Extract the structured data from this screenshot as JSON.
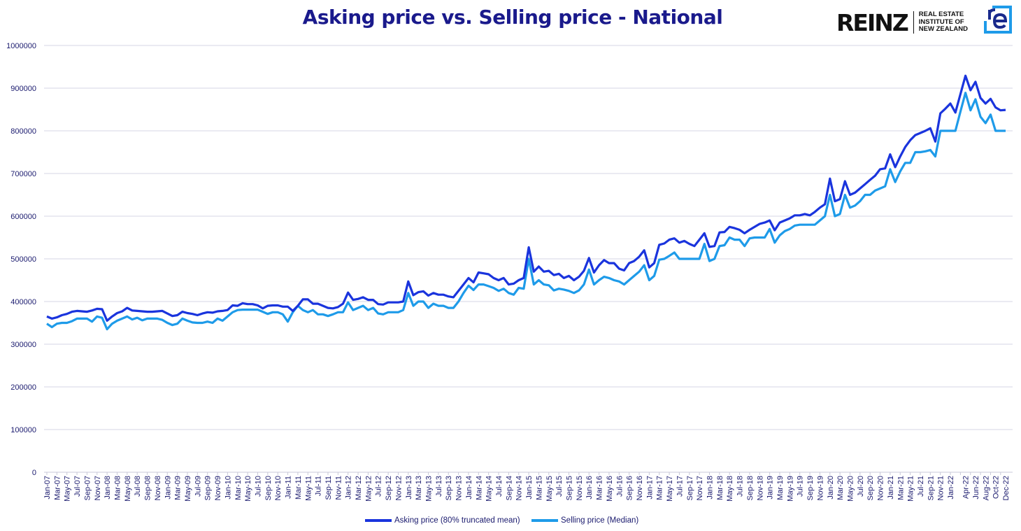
{
  "chart_data": {
    "type": "line",
    "title": "Asking price vs. Selling price - National",
    "xlabel": "",
    "ylabel": "",
    "ylim": [
      0,
      1000000
    ],
    "yticks": [
      0,
      100000,
      200000,
      300000,
      400000,
      500000,
      600000,
      700000,
      800000,
      900000,
      1000000
    ],
    "grid": true,
    "legend_placement": "bottom",
    "categories": [
      "Jan-07",
      "Feb-07",
      "Mar-07",
      "Apr-07",
      "May-07",
      "Jun-07",
      "Jul-07",
      "Aug-07",
      "Sep-07",
      "Oct-07",
      "Nov-07",
      "Dec-07",
      "Jan-08",
      "Feb-08",
      "Mar-08",
      "Apr-08",
      "May-08",
      "Jun-08",
      "Jul-08",
      "Aug-08",
      "Sep-08",
      "Oct-08",
      "Nov-08",
      "Dec-08",
      "Jan-09",
      "Feb-09",
      "Mar-09",
      "Apr-09",
      "May-09",
      "Jun-09",
      "Jul-09",
      "Aug-09",
      "Sep-09",
      "Oct-09",
      "Nov-09",
      "Dec-09",
      "Jan-10",
      "Feb-10",
      "Mar-10",
      "Apr-10",
      "May-10",
      "Jun-10",
      "Jul-10",
      "Aug-10",
      "Sep-10",
      "Oct-10",
      "Nov-10",
      "Dec-10",
      "Jan-11",
      "Feb-11",
      "Mar-11",
      "Apr-11",
      "May-11",
      "Jun-11",
      "Jul-11",
      "Aug-11",
      "Sep-11",
      "Oct-11",
      "Nov-11",
      "Dec-11",
      "Jan-12",
      "Feb-12",
      "Mar-12",
      "Apr-12",
      "May-12",
      "Jun-12",
      "Jul-12",
      "Aug-12",
      "Sep-12",
      "Oct-12",
      "Nov-12",
      "Dec-12",
      "Jan-13",
      "Feb-13",
      "Mar-13",
      "Apr-13",
      "May-13",
      "Jun-13",
      "Jul-13",
      "Aug-13",
      "Sep-13",
      "Oct-13",
      "Nov-13",
      "Dec-13",
      "Jan-14",
      "Feb-14",
      "Mar-14",
      "Apr-14",
      "May-14",
      "Jun-14",
      "Jul-14",
      "Aug-14",
      "Sep-14",
      "Oct-14",
      "Nov-14",
      "Dec-14",
      "Jan-15",
      "Feb-15",
      "Mar-15",
      "Apr-15",
      "May-15",
      "Jun-15",
      "Jul-15",
      "Aug-15",
      "Sep-15",
      "Oct-15",
      "Nov-15",
      "Dec-15",
      "Jan-16",
      "Feb-16",
      "Mar-16",
      "Apr-16",
      "May-16",
      "Jun-16",
      "Jul-16",
      "Aug-16",
      "Sep-16",
      "Oct-16",
      "Nov-16",
      "Dec-16",
      "Jan-17",
      "Feb-17",
      "Mar-17",
      "Apr-17",
      "May-17",
      "Jun-17",
      "Jul-17",
      "Aug-17",
      "Sep-17",
      "Oct-17",
      "Nov-17",
      "Dec-17",
      "Jan-18",
      "Feb-18",
      "Mar-18",
      "Apr-18",
      "May-18",
      "Jun-18",
      "Jul-18",
      "Aug-18",
      "Sep-18",
      "Oct-18",
      "Nov-18",
      "Dec-18",
      "Jan-19",
      "Feb-19",
      "Mar-19",
      "Apr-19",
      "May-19",
      "Jun-19",
      "Jul-19",
      "Aug-19",
      "Sep-19",
      "Oct-19",
      "Nov-19",
      "Dec-19",
      "Jan-20",
      "Feb-20",
      "Mar-20",
      "Apr-20",
      "May-20",
      "Jun-20",
      "Jul-20",
      "Aug-20",
      "Sep-20",
      "Oct-20",
      "Nov-20",
      "Dec-20",
      "Jan-21",
      "Feb-21",
      "Mar-21",
      "Apr-21",
      "May-21",
      "Jun-21",
      "Jul-21",
      "Aug-21",
      "Sep-21",
      "Oct-21",
      "Nov-21",
      "Dec-21",
      "Jan-22",
      "Feb-22",
      "Mar-22",
      "Apr-22",
      "May-22",
      "Jun-22",
      "Jul-22",
      "Aug-22",
      "Sep-22",
      "Oct-22",
      "Nov-22",
      "Dec-22"
    ],
    "tick_labels": [
      "Jan-07",
      "Mar-07",
      "May-07",
      "Jul-07",
      "Sep-07",
      "Nov-07",
      "Jan-08",
      "Mar-08",
      "May-08",
      "Jul-08",
      "Sep-08",
      "Nov-08",
      "Jan-09",
      "Mar-09",
      "May-09",
      "Jul-09",
      "Sep-09",
      "Nov-09",
      "Jan-10",
      "Mar-10",
      "May-10",
      "Jul-10",
      "Sep-10",
      "Nov-10",
      "Jan-11",
      "Mar-11",
      "May-11",
      "Jul-11",
      "Sep-11",
      "Nov-11",
      "Jan-12",
      "Mar-12",
      "May-12",
      "Jul-12",
      "Sep-12",
      "Nov-12",
      "Jan-13",
      "Mar-13",
      "May-13",
      "Jul-13",
      "Sep-13",
      "Nov-13",
      "Jan-14",
      "Mar-14",
      "May-14",
      "Jul-14",
      "Sep-14",
      "Nov-14",
      "Jan-15",
      "Mar-15",
      "May-15",
      "Jul-15",
      "Sep-15",
      "Nov-15",
      "Jan-16",
      "Mar-16",
      "May-16",
      "Jul-16",
      "Sep-16",
      "Nov-16",
      "Jan-17",
      "Mar-17",
      "May-17",
      "Jul-17",
      "Sep-17",
      "Nov-17",
      "Jan-18",
      "Mar-18",
      "May-18",
      "Jul-18",
      "Sep-18",
      "Nov-18",
      "Jan-19",
      "Mar-19",
      "May-19",
      "Jul-19",
      "Sep-19",
      "Nov-19",
      "Jan-20",
      "Mar-20",
      "May-20",
      "Jul-20",
      "Sep-20",
      "Nov-20",
      "Jan-21",
      "Mar-21",
      "May-21",
      "Jul-21",
      "Sep-21",
      "Nov-21",
      "Jan-22",
      "Apr-22",
      "Jun-22",
      "Aug-22",
      "Oct-22",
      "Dec-22"
    ],
    "series": [
      {
        "name": "Asking price (80% truncated mean)",
        "color": "#1a34dd",
        "values": [
          365000,
          360000,
          363000,
          368000,
          371000,
          376000,
          378000,
          377000,
          376000,
          379000,
          383000,
          382000,
          355000,
          365000,
          373000,
          377000,
          385000,
          379000,
          378000,
          377000,
          376000,
          376000,
          377000,
          378000,
          372000,
          366000,
          368000,
          376000,
          373000,
          371000,
          368000,
          372000,
          375000,
          374000,
          377000,
          378000,
          380000,
          391000,
          390000,
          396000,
          394000,
          394000,
          391000,
          384000,
          390000,
          391000,
          391000,
          388000,
          388000,
          378000,
          390000,
          405000,
          405000,
          395000,
          395000,
          390000,
          385000,
          384000,
          387000,
          395000,
          421000,
          404000,
          406000,
          410000,
          404000,
          404000,
          394000,
          393000,
          398000,
          398000,
          398000,
          400000,
          447000,
          415000,
          422000,
          424000,
          414000,
          420000,
          416000,
          416000,
          412000,
          410000,
          425000,
          440000,
          455000,
          445000,
          468000,
          466000,
          464000,
          455000,
          450000,
          455000,
          440000,
          442000,
          450000,
          455000,
          527000,
          470000,
          482000,
          470000,
          472000,
          462000,
          465000,
          455000,
          460000,
          450000,
          458000,
          472000,
          502000,
          468000,
          485000,
          497000,
          490000,
          490000,
          477000,
          473000,
          490000,
          495000,
          505000,
          520000,
          480000,
          490000,
          533000,
          536000,
          545000,
          548000,
          538000,
          542000,
          535000,
          530000,
          545000,
          560000,
          528000,
          530000,
          562000,
          563000,
          575000,
          572000,
          568000,
          560000,
          568000,
          575000,
          582000,
          585000,
          590000,
          567000,
          585000,
          590000,
          595000,
          602000,
          602000,
          605000,
          602000,
          610000,
          620000,
          628000,
          688000,
          635000,
          640000,
          682000,
          650000,
          655000,
          665000,
          675000,
          685000,
          695000,
          710000,
          712000,
          745000,
          715000,
          740000,
          762000,
          778000,
          790000,
          795000,
          800000,
          806000,
          775000,
          841000,
          852000,
          864000,
          843000,
          886000,
          929000,
          895000,
          915000,
          877000,
          864000,
          875000,
          855000,
          848000,
          849000
        ]
      },
      {
        "name": "Selling price (Median)",
        "color": "#1e9be9",
        "values": [
          348000,
          340000,
          348000,
          350000,
          350000,
          354000,
          360000,
          360000,
          360000,
          353000,
          365000,
          362000,
          335000,
          348000,
          355000,
          360000,
          365000,
          358000,
          362000,
          356000,
          360000,
          360000,
          360000,
          357000,
          350000,
          345000,
          348000,
          360000,
          355000,
          351000,
          350000,
          350000,
          353000,
          350000,
          360000,
          355000,
          365000,
          375000,
          380000,
          381000,
          381000,
          381000,
          381000,
          376000,
          371000,
          375000,
          375000,
          370000,
          353000,
          375000,
          390000,
          380000,
          375000,
          380000,
          370000,
          370000,
          366000,
          370000,
          375000,
          375000,
          398000,
          380000,
          385000,
          390000,
          380000,
          385000,
          372000,
          370000,
          375000,
          375000,
          375000,
          380000,
          420000,
          390000,
          400000,
          400000,
          385000,
          395000,
          390000,
          390000,
          385000,
          385000,
          400000,
          420000,
          437000,
          427000,
          440000,
          440000,
          436000,
          432000,
          425000,
          430000,
          420000,
          416000,
          432000,
          430000,
          500000,
          440000,
          450000,
          440000,
          438000,
          426000,
          430000,
          428000,
          425000,
          420000,
          426000,
          440000,
          475000,
          440000,
          450000,
          458000,
          455000,
          450000,
          447000,
          440000,
          450000,
          460000,
          470000,
          485000,
          450000,
          460000,
          498000,
          500000,
          507000,
          515000,
          500000,
          500000,
          500000,
          500000,
          500000,
          535000,
          495000,
          500000,
          530000,
          532000,
          550000,
          545000,
          545000,
          530000,
          548000,
          550000,
          550000,
          550000,
          570000,
          538000,
          555000,
          565000,
          570000,
          578000,
          580000,
          580000,
          580000,
          580000,
          590000,
          600000,
          650000,
          600000,
          605000,
          650000,
          620000,
          625000,
          635000,
          650000,
          650000,
          660000,
          665000,
          670000,
          710000,
          680000,
          705000,
          725000,
          725000,
          750000,
          750000,
          752000,
          755000,
          740000,
          800000,
          800000,
          800000,
          800000,
          845000,
          889000,
          848000,
          874000,
          833000,
          818000,
          838000,
          800000,
          800000,
          800000
        ]
      }
    ]
  },
  "logo": {
    "wordmark": "REINZ",
    "subtitle_lines": [
      "REAL ESTATE",
      "INSTITUTE OF",
      "NEW ZEALAND"
    ],
    "icon_text": "re",
    "icon_color": "#1e9be9"
  }
}
